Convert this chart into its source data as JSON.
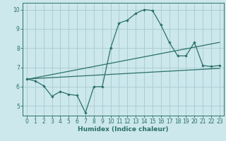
{
  "xlabel": "Humidex (Indice chaleur)",
  "bg_color": "#cce8ec",
  "grid_color": "#aacdd4",
  "line_color": "#2a7068",
  "spine_color": "#2a7068",
  "xlim": [
    -0.5,
    23.5
  ],
  "ylim": [
    4.5,
    10.35
  ],
  "yticks": [
    5,
    6,
    7,
    8,
    9,
    10
  ],
  "xticks": [
    0,
    1,
    2,
    3,
    4,
    5,
    6,
    7,
    8,
    9,
    10,
    11,
    12,
    13,
    14,
    15,
    16,
    17,
    18,
    19,
    20,
    21,
    22,
    23
  ],
  "curve1_x": [
    0,
    1,
    2,
    3,
    4,
    5,
    6,
    7,
    8,
    9,
    10,
    11,
    12,
    13,
    14,
    15,
    16,
    17,
    18,
    19,
    20,
    21,
    22,
    23
  ],
  "curve1_y": [
    6.4,
    6.3,
    6.05,
    5.5,
    5.75,
    5.6,
    5.55,
    4.65,
    6.0,
    6.0,
    8.0,
    9.3,
    9.45,
    9.8,
    10.0,
    9.95,
    9.2,
    8.3,
    7.6,
    7.6,
    8.3,
    7.1,
    7.05,
    7.1
  ],
  "curve2_x": [
    0,
    23
  ],
  "curve2_y": [
    6.4,
    6.95
  ],
  "curve3_x": [
    0,
    23
  ],
  "curve3_y": [
    6.38,
    8.3
  ],
  "marker_size": 2.2,
  "linewidth": 0.9,
  "tick_fontsize": 5.5,
  "xlabel_fontsize": 6.5
}
